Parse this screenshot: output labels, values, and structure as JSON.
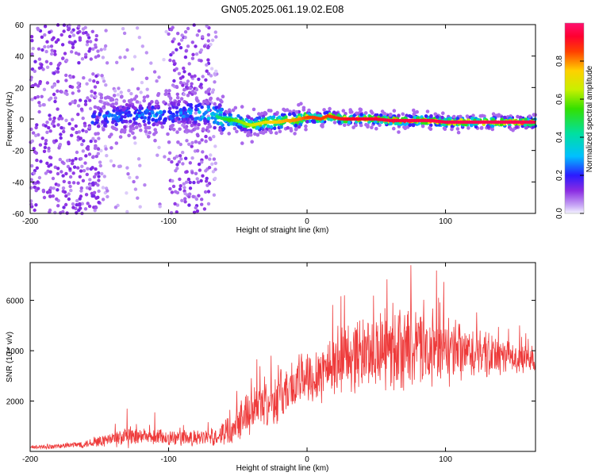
{
  "page": {
    "title": "GN05.2025.061.19.02.E08"
  },
  "chart_data": [
    {
      "type": "heatmap",
      "name": "spectrogram",
      "title": "GN05.2025.061.19.02.E08",
      "xlabel": "Height of straight line (km)",
      "ylabel": "Frequency (Hz)",
      "xlim": [
        -200,
        165
      ],
      "ylim": [
        -60,
        60
      ],
      "xticks": [
        -200,
        -100,
        0,
        100
      ],
      "yticks": [
        -60,
        -40,
        -20,
        0,
        20,
        40,
        60
      ],
      "colorbar": {
        "label": "Normalized spectral amplitude",
        "range": [
          0,
          1
        ],
        "ticks": [
          "0.0",
          "0.2",
          "0.4",
          "0.6",
          "0.8"
        ],
        "colormap": "rainbow"
      },
      "ridge": {
        "description_values": "peak frequency (Hz) vs height (km)",
        "x": [
          -150,
          -130,
          -110,
          -90,
          -70,
          -60,
          -50,
          -45,
          -40,
          -35,
          -30,
          -25,
          -20,
          -15,
          -10,
          -5,
          0,
          5,
          10,
          15,
          20,
          25,
          30,
          40,
          50,
          60,
          70,
          80,
          90,
          100,
          110,
          120,
          130,
          140,
          150,
          165
        ],
        "y": [
          1,
          2,
          3,
          4,
          3,
          0,
          -1,
          -3,
          -4,
          -3,
          -2,
          -2,
          -2,
          -1,
          -1,
          0,
          1,
          1,
          0,
          2,
          1,
          0,
          0,
          0,
          0,
          -1,
          -1,
          -1,
          -1,
          -2,
          -2,
          -2,
          -2,
          -2,
          -2,
          -2
        ],
        "amplitude": [
          0.28,
          0.3,
          0.32,
          0.3,
          0.4,
          0.5,
          0.6,
          0.62,
          0.65,
          0.7,
          0.72,
          0.74,
          0.76,
          0.78,
          0.8,
          0.8,
          0.85,
          0.85,
          0.85,
          0.86,
          0.88,
          0.9,
          0.92,
          0.93,
          0.94,
          0.95,
          0.95,
          0.96,
          0.96,
          0.96,
          0.97,
          0.97,
          0.97,
          0.97,
          0.97,
          0.97
        ]
      }
    },
    {
      "type": "line",
      "name": "snr",
      "xlabel": "Height of straight line (km)",
      "ylabel": "SNR (10 * v/v)",
      "xlim": [
        -200,
        165
      ],
      "ylim": [
        0,
        7500
      ],
      "xticks": [
        -200,
        -100,
        0,
        100
      ],
      "yticks": [
        2000,
        4000,
        6000
      ],
      "color": "#ee3a3a",
      "envelope": {
        "x": [
          -200,
          -180,
          -160,
          -140,
          -130,
          -120,
          -100,
          -80,
          -65,
          -55,
          -50,
          -45,
          -40,
          -30,
          -20,
          -10,
          0,
          10,
          20,
          30,
          40,
          50,
          60,
          70,
          80,
          90,
          100,
          110,
          120,
          130,
          140,
          150,
          165
        ],
        "mean": [
          150,
          200,
          300,
          500,
          550,
          550,
          550,
          500,
          600,
          900,
          1300,
          1500,
          1700,
          1900,
          2200,
          2600,
          3000,
          3200,
          3500,
          3800,
          3900,
          4000,
          4000,
          4100,
          4050,
          4000,
          3950,
          3900,
          3850,
          3800,
          3750,
          3700,
          3650
        ],
        "spread": [
          80,
          100,
          150,
          300,
          450,
          300,
          350,
          300,
          350,
          600,
          800,
          800,
          900,
          900,
          1000,
          1000,
          1100,
          1200,
          1300,
          1400,
          1400,
          1500,
          1500,
          1600,
          1500,
          1400,
          1300,
          1200,
          1000,
          900,
          700,
          600,
          500
        ]
      },
      "peaks": [
        {
          "x": 75,
          "y": 7400
        },
        {
          "x": 27,
          "y": 6200
        },
        {
          "x": 95,
          "y": 6100
        },
        {
          "x": 62,
          "y": 5900
        },
        {
          "x": -26,
          "y": 3800
        },
        {
          "x": -130,
          "y": 1700
        },
        {
          "x": -110,
          "y": 1550
        }
      ]
    }
  ]
}
